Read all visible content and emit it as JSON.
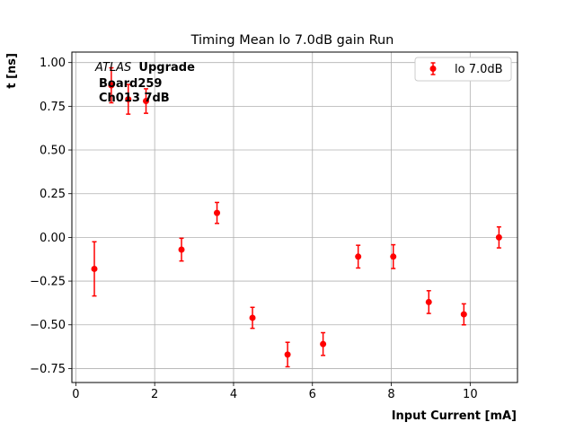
{
  "chart_data": {
    "type": "scatter",
    "title": "Timing Mean lo 7.0dB gain Run",
    "xlabel": "Input Current [mA]",
    "ylabel": "t [ns]",
    "xlim": [
      -0.1,
      11.2
    ],
    "ylim": [
      -0.83,
      1.06
    ],
    "xticks": [
      0,
      2,
      4,
      6,
      8,
      10
    ],
    "xtick_labels": [
      "0",
      "2",
      "4",
      "6",
      "8",
      "10"
    ],
    "yticks": [
      -0.75,
      -0.5,
      -0.25,
      0.0,
      0.25,
      0.5,
      0.75,
      1.0
    ],
    "ytick_labels": [
      "−0.75",
      "−0.50",
      "−0.25",
      "0.00",
      "0.25",
      "0.50",
      "0.75",
      "1.00"
    ],
    "grid": true,
    "legend_position": "top-right",
    "series": [
      {
        "name": "lo 7.0dB",
        "color": "#ff0000",
        "x": [
          0.47,
          0.9,
          1.33,
          1.78,
          2.68,
          3.58,
          4.48,
          5.37,
          6.27,
          7.16,
          8.05,
          8.95,
          9.84,
          10.73
        ],
        "y": [
          -0.18,
          0.87,
          0.79,
          0.78,
          -0.07,
          0.14,
          -0.46,
          -0.67,
          -0.61,
          -0.11,
          -0.11,
          -0.37,
          -0.44,
          0.0
        ],
        "yerr": [
          0.155,
          0.1,
          0.085,
          0.07,
          0.065,
          0.06,
          0.06,
          0.07,
          0.065,
          0.065,
          0.068,
          0.065,
          0.06,
          0.06
        ]
      }
    ],
    "annotation": {
      "atlas": "ATLAS",
      "upgrade": "Upgrade",
      "line2": "Board259",
      "line3": "Ch013 7dB"
    }
  }
}
